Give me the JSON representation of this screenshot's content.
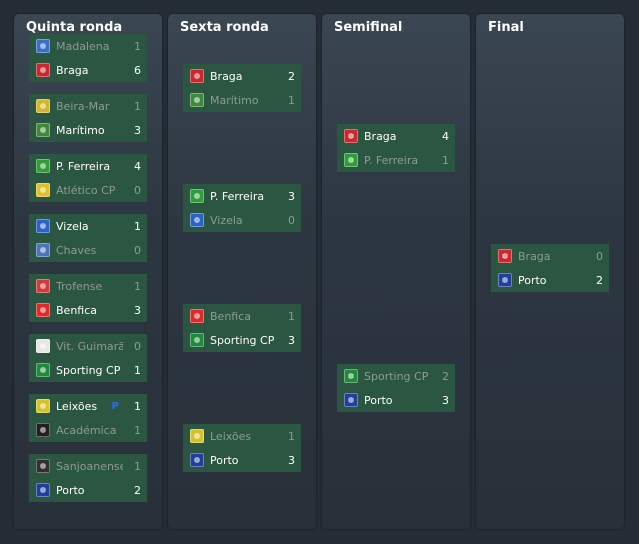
{
  "rounds": [
    {
      "title": "Quinta ronda",
      "matches": [
        {
          "home": {
            "team": "Madalena",
            "score": "1",
            "won": false,
            "crest": "#3a6fc7"
          },
          "away": {
            "team": "Braga",
            "score": "6",
            "won": true,
            "crest": "#c8282e"
          }
        },
        {
          "home": {
            "team": "Beira-Mar",
            "score": "1",
            "won": false,
            "crest": "#d4b52a"
          },
          "away": {
            "team": "Marítimo",
            "score": "3",
            "won": true,
            "crest": "#3f8a3a"
          }
        },
        {
          "home": {
            "team": "P. Ferreira",
            "score": "4",
            "won": true,
            "crest": "#2f9d3a"
          },
          "away": {
            "team": "Atlético CP",
            "score": "0",
            "won": false,
            "crest": "#e0c02a"
          }
        },
        {
          "home": {
            "team": "Vizela",
            "score": "1",
            "won": true,
            "crest": "#2b62c8"
          },
          "away": {
            "team": "Chaves",
            "score": "0",
            "won": false,
            "crest": "#4a74b8"
          }
        },
        {
          "home": {
            "team": "Trofense",
            "score": "1",
            "won": false,
            "crest": "#d03a3a"
          },
          "away": {
            "team": "Benfica",
            "score": "3",
            "won": true,
            "crest": "#e02a2a"
          }
        },
        {
          "home": {
            "team": "Vit. Guimarã...",
            "score": "0",
            "won": false,
            "crest": "#e6e6e6"
          },
          "away": {
            "team": "Sporting CP",
            "score": "1",
            "won": true,
            "crest": "#1f8a3a"
          }
        },
        {
          "home": {
            "team": "Leixões",
            "score": "1",
            "won": true,
            "crest": "#d8c22a",
            "flag": "P"
          },
          "away": {
            "team": "Académica",
            "score": "1",
            "won": false,
            "crest": "#202020"
          }
        },
        {
          "home": {
            "team": "Sanjoanense",
            "score": "1",
            "won": false,
            "crest": "#303030"
          },
          "away": {
            "team": "Porto",
            "score": "2",
            "won": true,
            "crest": "#1f3f9a"
          }
        }
      ]
    },
    {
      "title": "Sexta ronda",
      "matches": [
        {
          "home": {
            "team": "Braga",
            "score": "2",
            "won": true,
            "crest": "#c8282e"
          },
          "away": {
            "team": "Marítimo",
            "score": "1",
            "won": false,
            "crest": "#3f8a3a"
          }
        },
        {
          "home": {
            "team": "P. Ferreira",
            "score": "3",
            "won": true,
            "crest": "#2f9d3a"
          },
          "away": {
            "team": "Vizela",
            "score": "0",
            "won": false,
            "crest": "#2b62c8"
          }
        },
        {
          "home": {
            "team": "Benfica",
            "score": "1",
            "won": false,
            "crest": "#e02a2a"
          },
          "away": {
            "team": "Sporting CP",
            "score": "3",
            "won": true,
            "crest": "#1f8a3a"
          }
        },
        {
          "home": {
            "team": "Leixões",
            "score": "1",
            "won": false,
            "crest": "#d8c22a"
          },
          "away": {
            "team": "Porto",
            "score": "3",
            "won": true,
            "crest": "#1f3f9a"
          }
        }
      ]
    },
    {
      "title": "Semifinal",
      "matches": [
        {
          "home": {
            "team": "Braga",
            "score": "4",
            "won": true,
            "crest": "#c8282e"
          },
          "away": {
            "team": "P. Ferreira",
            "score": "1",
            "won": false,
            "crest": "#2f9d3a"
          }
        },
        {
          "home": {
            "team": "Sporting CP",
            "score": "2",
            "won": false,
            "crest": "#1f8a3a"
          },
          "away": {
            "team": "Porto",
            "score": "3",
            "won": true,
            "crest": "#1f3f9a"
          }
        }
      ]
    },
    {
      "title": "Final",
      "matches": [
        {
          "home": {
            "team": "Braga",
            "score": "0",
            "won": false,
            "crest": "#c8282e"
          },
          "away": {
            "team": "Porto",
            "score": "2",
            "won": true,
            "crest": "#1f3f9a"
          }
        }
      ]
    }
  ]
}
